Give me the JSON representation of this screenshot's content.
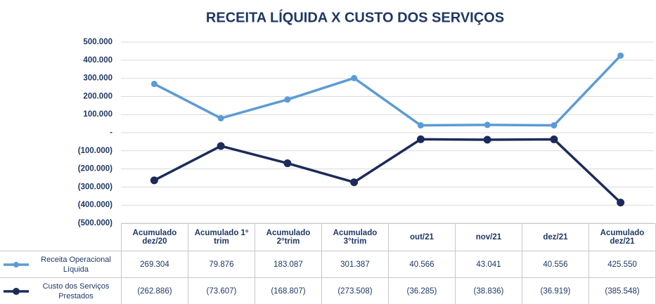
{
  "chart_data": {
    "type": "line",
    "title": "RECEITA LÍQUIDA X CUSTO DOS SERVIÇOS",
    "categories": [
      "Acumulado dez/20",
      "Acumulado 1º trim",
      "Acumulado 2°trim",
      "Acumulado 3°trim",
      "out/21",
      "nov/21",
      "dez/21",
      "Acumulado dez/21"
    ],
    "series": [
      {
        "name": "Receita Operacional Líquida",
        "color": "#5b9bd5",
        "values": [
          269304,
          79876,
          183087,
          301387,
          40566,
          43041,
          40556,
          425550
        ],
        "value_labels": [
          "269.304",
          "79.876",
          "183.087",
          "301.387",
          "40.566",
          "43.041",
          "40.556",
          "425.550"
        ]
      },
      {
        "name": "Custo dos Serviços Prestados",
        "color": "#1c2b5a",
        "values": [
          -262886,
          -73607,
          -168807,
          -273508,
          -36285,
          -38836,
          -36919,
          -385548
        ],
        "value_labels": [
          "(262.886)",
          "(73.607)",
          "(168.807)",
          "(273.508)",
          "(36.285)",
          "(38.836)",
          "(36.919)",
          "(385.548)"
        ]
      }
    ],
    "ylim": [
      -500000,
      500000
    ],
    "yticks": [
      {
        "value": 500000,
        "label": "500.000"
      },
      {
        "value": 400000,
        "label": "400.000"
      },
      {
        "value": 300000,
        "label": "300.000"
      },
      {
        "value": 200000,
        "label": "200.000"
      },
      {
        "value": 100000,
        "label": "100.000"
      },
      {
        "value": 0,
        "label": "-"
      },
      {
        "value": -100000,
        "label": "(100.000)"
      },
      {
        "value": -200000,
        "label": "(200.000)"
      },
      {
        "value": -300000,
        "label": "(300.000)"
      },
      {
        "value": -400000,
        "label": "(400.000)"
      },
      {
        "value": -500000,
        "label": "(500.000)"
      }
    ],
    "grid": true
  }
}
